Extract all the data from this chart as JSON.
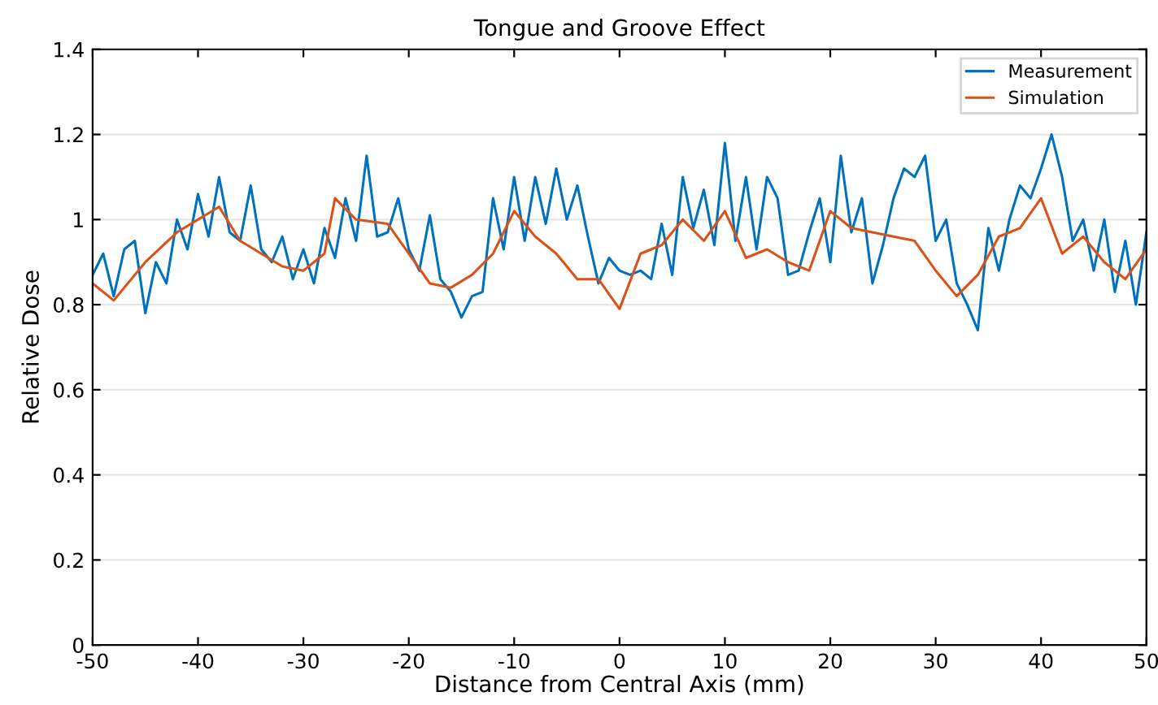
{
  "chart_data": {
    "type": "line",
    "title": "Tongue and Groove Effect",
    "xlabel": "Distance from Central Axis (mm)",
    "ylabel": "Relative Dose",
    "xlim": [
      -50,
      50
    ],
    "xticks": [
      -50,
      -40,
      -30,
      -20,
      -10,
      0,
      10,
      20,
      30,
      40,
      50
    ],
    "ylim": [
      0,
      1.4
    ],
    "yticks": [
      0,
      0.2,
      0.4,
      0.6,
      0.8,
      1,
      1.2,
      1.4
    ],
    "grid": "y",
    "legend": "top right",
    "series": [
      {
        "name": "Measurement",
        "color": "#0072bd",
        "x": [
          -50,
          -49,
          -48,
          -47,
          -46,
          -45,
          -44,
          -43,
          -42,
          -41,
          -40,
          -39,
          -38,
          -37,
          -36,
          -35,
          -34,
          -33,
          -32,
          -31,
          -30,
          -29,
          -28,
          -27,
          -26,
          -25,
          -24,
          -23,
          -22,
          -21,
          -20,
          -19,
          -18,
          -17,
          -16,
          -15,
          -14,
          -13,
          -12,
          -11,
          -10,
          -9,
          -8,
          -7,
          -6,
          -5,
          -4,
          -3,
          -2,
          -1,
          0,
          1,
          2,
          3,
          4,
          5,
          6,
          7,
          8,
          9,
          10,
          11,
          12,
          13,
          14,
          15,
          16,
          17,
          18,
          19,
          20,
          21,
          22,
          23,
          24,
          25,
          26,
          27,
          28,
          29,
          30,
          31,
          32,
          33,
          34,
          35,
          36,
          37,
          38,
          39,
          40,
          41,
          42,
          43,
          44,
          45,
          46,
          47,
          48,
          49,
          50
        ],
        "values": [
          0.87,
          0.92,
          0.82,
          0.93,
          0.95,
          0.78,
          0.9,
          0.85,
          1.0,
          0.93,
          1.06,
          0.96,
          1.1,
          0.97,
          0.95,
          1.08,
          0.93,
          0.9,
          0.96,
          0.86,
          0.93,
          0.85,
          0.98,
          0.91,
          1.05,
          0.95,
          1.15,
          0.96,
          0.97,
          1.05,
          0.93,
          0.88,
          1.01,
          0.86,
          0.83,
          0.77,
          0.82,
          0.83,
          1.05,
          0.93,
          1.1,
          0.95,
          1.1,
          0.99,
          1.12,
          1.0,
          1.08,
          0.96,
          0.85,
          0.91,
          0.88,
          0.87,
          0.88,
          0.86,
          0.99,
          0.87,
          1.1,
          0.98,
          1.07,
          0.94,
          1.18,
          0.95,
          1.1,
          0.93,
          1.1,
          1.05,
          0.87,
          0.88,
          0.97,
          1.05,
          0.9,
          1.15,
          0.97,
          1.05,
          0.85,
          0.94,
          1.05,
          1.12,
          1.1,
          1.15,
          0.95,
          1.0,
          0.85,
          0.8,
          0.74,
          0.98,
          0.88,
          1.0,
          1.08,
          1.05,
          1.12,
          1.2,
          1.1,
          0.95,
          1.0,
          0.88,
          1.0,
          0.83,
          0.95,
          0.8,
          0.97
        ]
      },
      {
        "name": "Simulation",
        "color": "#d95319",
        "x": [
          -50,
          -48,
          -45,
          -42,
          -40,
          -38,
          -36,
          -34,
          -32,
          -30,
          -28,
          -27,
          -25,
          -22,
          -20,
          -18,
          -16,
          -14,
          -12,
          -10,
          -8,
          -6,
          -4,
          -2,
          0,
          2,
          4,
          6,
          8,
          10,
          12,
          14,
          16,
          18,
          20,
          22,
          24,
          26,
          28,
          30,
          32,
          34,
          36,
          38,
          40,
          42,
          44,
          46,
          48,
          50
        ],
        "values": [
          0.85,
          0.81,
          0.9,
          0.97,
          1.0,
          1.03,
          0.95,
          0.92,
          0.89,
          0.88,
          0.92,
          1.05,
          1.0,
          0.99,
          0.92,
          0.85,
          0.84,
          0.87,
          0.92,
          1.02,
          0.96,
          0.92,
          0.86,
          0.86,
          0.79,
          0.92,
          0.94,
          1.0,
          0.95,
          1.02,
          0.91,
          0.93,
          0.9,
          0.88,
          1.02,
          0.98,
          0.97,
          0.96,
          0.95,
          0.88,
          0.82,
          0.87,
          0.96,
          0.98,
          1.05,
          0.92,
          0.96,
          0.9,
          0.86,
          0.93
        ]
      }
    ]
  }
}
